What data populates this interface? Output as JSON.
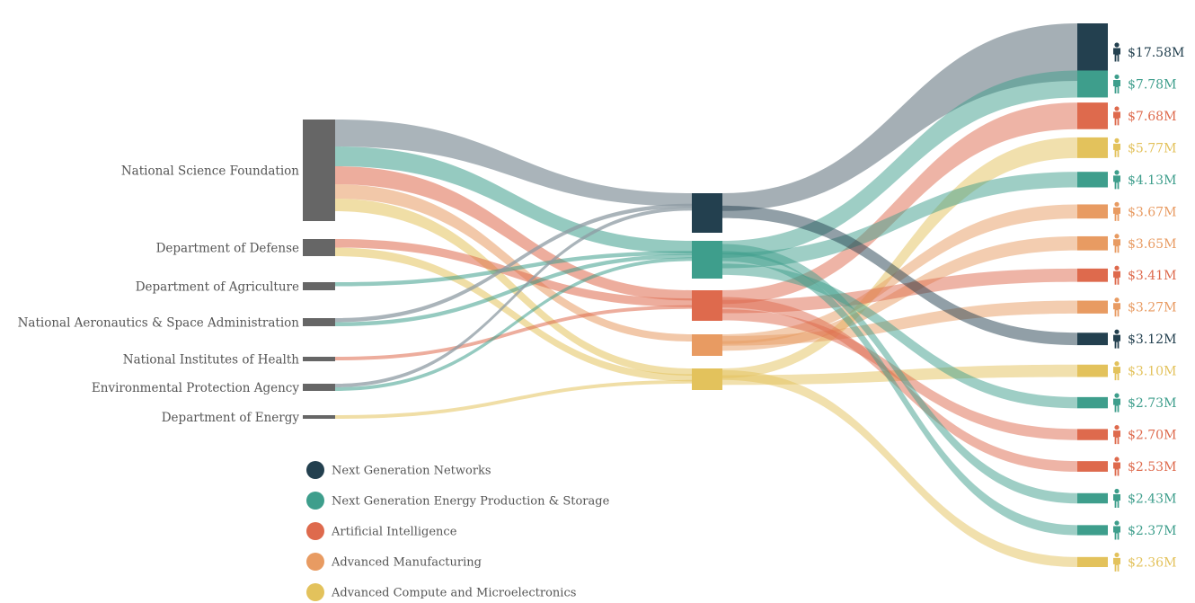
{
  "chart_data": {
    "type": "sankey",
    "colors": {
      "Next Generation Networks": "#23404f",
      "Next Generation Energy Production & Storage": "#3e9e8c",
      "Artificial Intelligence": "#de6a4d",
      "Advanced Manufacturing": "#e89b62",
      "Advanced Compute and Microelectronics": "#e3c25c",
      "agency_node": "#666666",
      "gray_link": "#8e9ba3"
    },
    "agencies": [
      "National Science Foundation",
      "Department of Defense",
      "Department of Agriculture",
      "National Aeronautics & Space Administration",
      "National Institutes of Health",
      "Environmental Protection Agency",
      "Department of Energy"
    ],
    "categories": [
      "Next Generation Networks",
      "Next Generation Energy Production & Storage",
      "Artificial Intelligence",
      "Advanced Manufacturing",
      "Advanced Compute and Microelectronics"
    ],
    "recipients": [
      {
        "amount": "$17.58M",
        "value": 17.58,
        "category": "Next Generation Networks"
      },
      {
        "amount": "$7.78M",
        "value": 7.78,
        "category": "Next Generation Energy Production & Storage"
      },
      {
        "amount": "$7.68M",
        "value": 7.68,
        "category": "Artificial Intelligence"
      },
      {
        "amount": "$5.77M",
        "value": 5.77,
        "category": "Advanced Compute and Microelectronics"
      },
      {
        "amount": "$4.13M",
        "value": 4.13,
        "category": "Next Generation Energy Production & Storage"
      },
      {
        "amount": "$3.67M",
        "value": 3.67,
        "category": "Advanced Manufacturing"
      },
      {
        "amount": "$3.65M",
        "value": 3.65,
        "category": "Advanced Manufacturing"
      },
      {
        "amount": "$3.41M",
        "value": 3.41,
        "category": "Artificial Intelligence"
      },
      {
        "amount": "$3.27M",
        "value": 3.27,
        "category": "Advanced Manufacturing"
      },
      {
        "amount": "$3.12M",
        "value": 3.12,
        "category": "Next Generation Networks"
      },
      {
        "amount": "$3.10M",
        "value": 3.1,
        "category": "Advanced Compute and Microelectronics"
      },
      {
        "amount": "$2.73M",
        "value": 2.73,
        "category": "Next Generation Energy Production & Storage"
      },
      {
        "amount": "$2.70M",
        "value": 2.7,
        "category": "Artificial Intelligence"
      },
      {
        "amount": "$2.53M",
        "value": 2.53,
        "category": "Artificial Intelligence"
      },
      {
        "amount": "$2.43M",
        "value": 2.43,
        "category": "Next Generation Energy Production & Storage"
      },
      {
        "amount": "$2.37M",
        "value": 2.37,
        "category": "Next Generation Energy Production & Storage"
      },
      {
        "amount": "$2.36M",
        "value": 2.36,
        "category": "Advanced Compute and Microelectronics"
      }
    ],
    "links_agency_to_category": [
      {
        "agency": "National Science Foundation",
        "category": "Next Generation Networks"
      },
      {
        "agency": "National Science Foundation",
        "category": "Next Generation Energy Production & Storage"
      },
      {
        "agency": "National Science Foundation",
        "category": "Artificial Intelligence"
      },
      {
        "agency": "National Science Foundation",
        "category": "Advanced Manufacturing"
      },
      {
        "agency": "National Science Foundation",
        "category": "Advanced Compute and Microelectronics"
      },
      {
        "agency": "Department of Defense",
        "category": "Artificial Intelligence"
      },
      {
        "agency": "Department of Defense",
        "category": "Advanced Compute and Microelectronics"
      },
      {
        "agency": "Department of Agriculture",
        "category": "Next Generation Energy Production & Storage"
      },
      {
        "agency": "National Aeronautics & Space Administration",
        "category": "Next Generation Networks"
      },
      {
        "agency": "National Aeronautics & Space Administration",
        "category": "Next Generation Energy Production & Storage"
      },
      {
        "agency": "National Institutes of Health",
        "category": "Artificial Intelligence"
      },
      {
        "agency": "Environmental Protection Agency",
        "category": "Next Generation Networks"
      },
      {
        "agency": "Environmental Protection Agency",
        "category": "Next Generation Energy Production & Storage"
      },
      {
        "agency": "Department of Energy",
        "category": "Advanced Compute and Microelectronics"
      }
    ],
    "legend": [
      {
        "label": "Next Generation Networks",
        "color": "#23404f"
      },
      {
        "label": "Next Generation Energy Production & Storage",
        "color": "#3e9e8c"
      },
      {
        "label": "Artificial Intelligence",
        "color": "#de6a4d"
      },
      {
        "label": "Advanced Manufacturing",
        "color": "#e89b62"
      },
      {
        "label": "Advanced Compute and Microelectronics",
        "color": "#e3c25c"
      }
    ]
  }
}
